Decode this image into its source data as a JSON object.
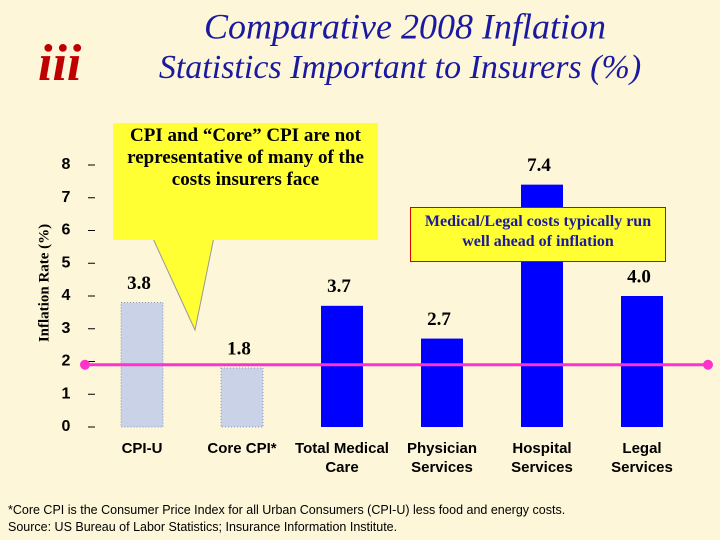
{
  "chart_data": {
    "type": "bar",
    "logo": "iii",
    "title": "Comparative 2008 Inflation",
    "subtitle": "Statistics Important to Insurers (%)",
    "y_label": "Inflation Rate (%)",
    "categories": [
      "CPI-U",
      "Core CPI*",
      "Total Medical Care",
      "Physician Services",
      "Hospital Services",
      "Legal Services"
    ],
    "values": [
      3.8,
      1.8,
      3.7,
      2.7,
      7.4,
      4
    ],
    "value_labels": [
      "3.8",
      "1.8",
      "3.7",
      "2.7",
      "7.4",
      "4.0"
    ],
    "colors": [
      "#c9d2e6",
      "#c9d2e6",
      "#0000ff",
      "#0000ff",
      "#0000ff",
      "#0000ff"
    ],
    "ylim": [
      0,
      8
    ],
    "yticks": [
      0,
      1,
      2,
      3,
      4,
      5,
      6,
      7,
      8
    ],
    "reference_line": 1.9,
    "reference_color": "#ff33cc",
    "annotations": [
      "CPI and “Core” CPI are not representative of many of the costs insurers face",
      "Medical/Legal costs typically run well ahead of inflation"
    ],
    "footnotes": [
      "*Core CPI is the Consumer Price Index for all Urban Consumers (CPI-U) less food and energy costs.",
      "Source: US Bureau of Labor Statistics; Insurance Information Institute."
    ]
  }
}
